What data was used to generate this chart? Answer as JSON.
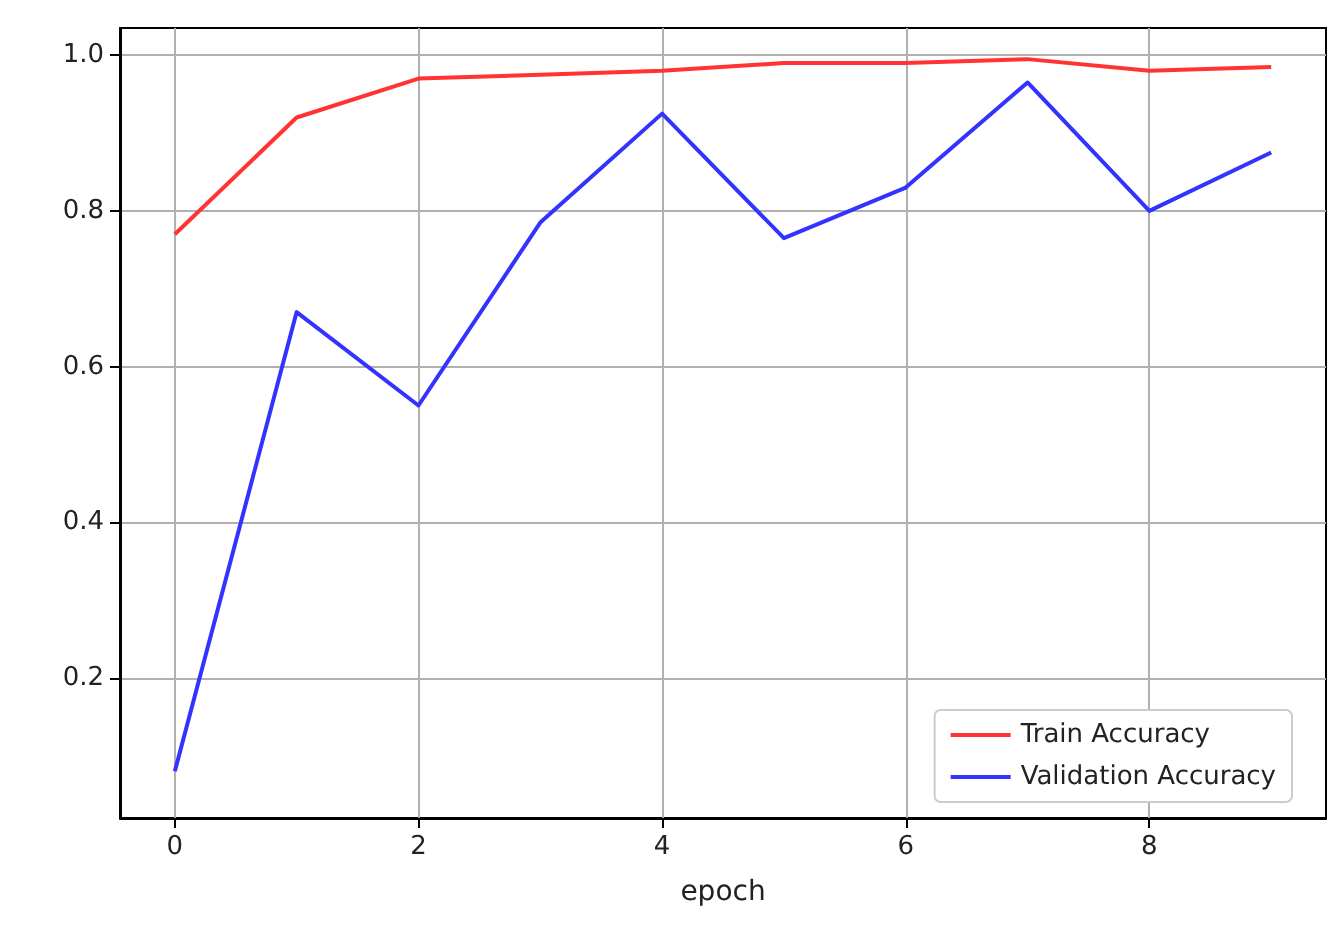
{
  "chart_data": {
    "type": "line",
    "xlabel": "epoch",
    "x": [
      0,
      1,
      2,
      3,
      4,
      5,
      6,
      7,
      8,
      9
    ],
    "series": [
      {
        "name": "Train Accuracy",
        "color": "#ff3333",
        "values": [
          0.77,
          0.92,
          0.97,
          0.975,
          0.98,
          0.99,
          0.99,
          0.995,
          0.98,
          0.985
        ]
      },
      {
        "name": "Validation Accuracy",
        "color": "#3333ff",
        "values": [
          0.08,
          0.67,
          0.55,
          0.785,
          0.925,
          0.765,
          0.83,
          0.965,
          0.8,
          0.875
        ]
      }
    ],
    "xlim": [
      -0.45,
      9.45
    ],
    "xticks": [
      0,
      2,
      4,
      6,
      8
    ],
    "ylim": [
      0.02,
      1.035
    ],
    "yticks": [
      0.2,
      0.4,
      0.6,
      0.8,
      {
        "value": 1,
        "label": "1.0"
      }
    ],
    "grid": true,
    "legend": "bottom right",
    "marker": "none",
    "line_style": "solid"
  }
}
